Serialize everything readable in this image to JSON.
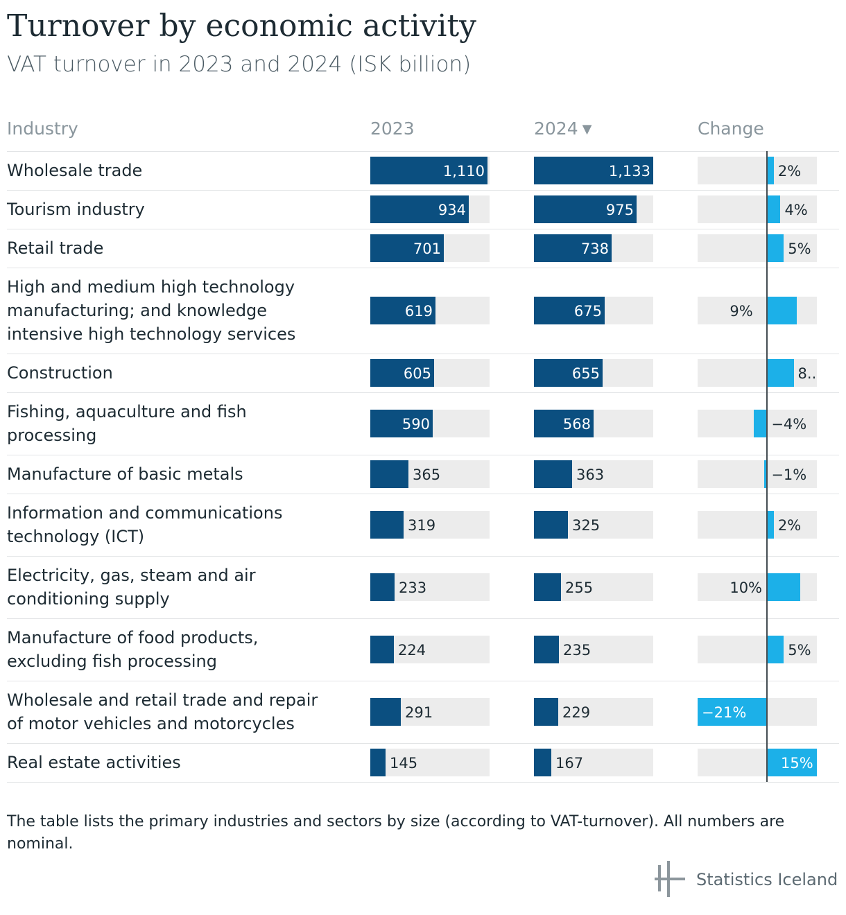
{
  "title": "Turnover by economic activity",
  "subtitle": "VAT turnover in 2023 and 2024 (ISK billion)",
  "headers": {
    "industry": "Industry",
    "y2023": "2023",
    "y2024": "2024",
    "sort_icon": "triangle-down-icon",
    "change": "Change"
  },
  "footnote": "The table lists the primary industries and sectors by size (according to VAT-turnover). All numbers are nominal.",
  "logo_text": "Statistics Iceland",
  "colors": {
    "bar_dark": "#0b4f80",
    "bar_light": "#1cb0e8",
    "track": "#ececec"
  },
  "chart_data": {
    "type": "table",
    "columns": [
      "Industry",
      "2023",
      "2024",
      "Change"
    ],
    "value_max": 1133,
    "change_range": [
      -21,
      15
    ],
    "rows": [
      {
        "industry": "Wholesale trade",
        "v2023": 1110,
        "l2023": "1,110",
        "v2024": 1133,
        "l2024": "1,133",
        "change": 2,
        "lchange": "2%"
      },
      {
        "industry": "Tourism industry",
        "v2023": 934,
        "l2023": "934",
        "v2024": 975,
        "l2024": "975",
        "change": 4,
        "lchange": "4%"
      },
      {
        "industry": "Retail trade",
        "v2023": 701,
        "l2023": "701",
        "v2024": 738,
        "l2024": "738",
        "change": 5,
        "lchange": "5%"
      },
      {
        "industry": "High and medium high technology\nmanufacturing; and knowledge\nintensive high technology services",
        "v2023": 619,
        "l2023": "619",
        "v2024": 675,
        "l2024": "675",
        "change": 9,
        "lchange": "9%"
      },
      {
        "industry": "Construction",
        "v2023": 605,
        "l2023": "605",
        "v2024": 655,
        "l2024": "655",
        "change": 8,
        "lchange": "8.."
      },
      {
        "industry": "Fishing, aquaculture and fish\nprocessing",
        "v2023": 590,
        "l2023": "590",
        "v2024": 568,
        "l2024": "568",
        "change": -4,
        "lchange": "−4%"
      },
      {
        "industry": "Manufacture of basic metals",
        "v2023": 365,
        "l2023": "365",
        "v2024": 363,
        "l2024": "363",
        "change": -1,
        "lchange": "−1%"
      },
      {
        "industry": "Information and communications\ntechnology (ICT)",
        "v2023": 319,
        "l2023": "319",
        "v2024": 325,
        "l2024": "325",
        "change": 2,
        "lchange": "2%"
      },
      {
        "industry": "Electricity, gas, steam and air\nconditioning supply",
        "v2023": 233,
        "l2023": "233",
        "v2024": 255,
        "l2024": "255",
        "change": 10,
        "lchange": "10%"
      },
      {
        "industry": "Manufacture of food products,\nexcluding fish processing",
        "v2023": 224,
        "l2023": "224",
        "v2024": 235,
        "l2024": "235",
        "change": 5,
        "lchange": "5%"
      },
      {
        "industry": "Wholesale and retail trade and repair\nof motor vehicles and motorcycles",
        "v2023": 291,
        "l2023": "291",
        "v2024": 229,
        "l2024": "229",
        "change": -21,
        "lchange": "−21%"
      },
      {
        "industry": "Real estate activities",
        "v2023": 145,
        "l2023": "145",
        "v2024": 167,
        "l2024": "167",
        "change": 15,
        "lchange": "15%"
      }
    ]
  }
}
